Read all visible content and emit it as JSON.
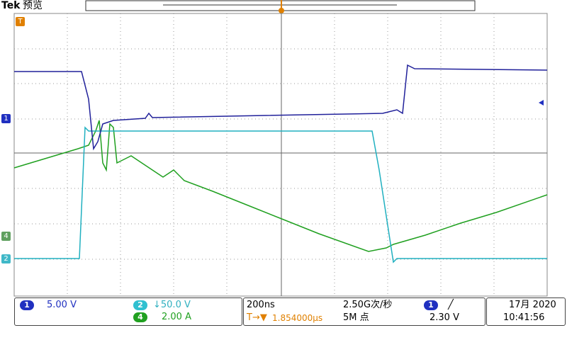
{
  "header": {
    "brand": "Tek",
    "mode": "预览"
  },
  "markers": {
    "trigger": "T",
    "ch1": "1",
    "ch2": "2",
    "ch4": "4"
  },
  "status": {
    "channels": [
      {
        "id": "1",
        "scale": "5.00 V"
      },
      {
        "id": "2",
        "scale": "↓50.0 V"
      },
      {
        "id": "4",
        "scale": "2.00 A"
      }
    ],
    "timebase": "200ns",
    "sample_rate": "2.50G次/秒",
    "trigger_pos": "1.854000µs",
    "record_length": "5M 点",
    "trigger_source": "1",
    "trigger_slope": "╱",
    "trigger_level": "2.30 V",
    "date": "17月 2020",
    "time": "10:41:56"
  }
}
